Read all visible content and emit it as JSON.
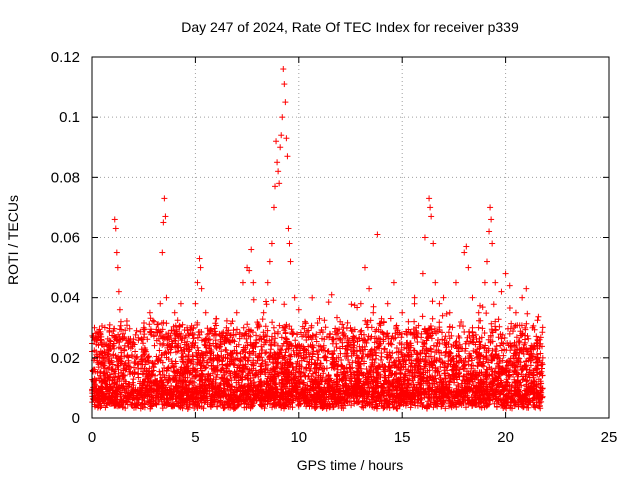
{
  "chart_data": {
    "type": "scatter",
    "title": "Day 247 of 2024, Rate Of TEC Index for receiver p339",
    "xlabel": "GPS time / hours",
    "ylabel": "ROTI / TECUs",
    "xlim": [
      0,
      25
    ],
    "ylim": [
      0,
      0.12
    ],
    "x_ticks": [
      0,
      5,
      10,
      15,
      20,
      25
    ],
    "x_tick_labels": [
      "0",
      "5",
      "10",
      "15",
      "20",
      "25"
    ],
    "y_ticks": [
      0,
      0.02,
      0.04,
      0.06,
      0.08,
      0.1,
      0.12
    ],
    "y_tick_labels": [
      "0",
      "0.02",
      "0.04",
      "0.06",
      "0.08",
      "0.1",
      "0.12"
    ],
    "grid": true,
    "marker": "plus",
    "color": "#ff0000",
    "x_range_of_data": [
      0,
      21.8
    ],
    "series": [
      {
        "points": [
          [
            0.1,
            0.012
          ],
          [
            0.2,
            0.022
          ],
          [
            0.3,
            0.027
          ],
          [
            0.5,
            0.018
          ],
          [
            0.8,
            0.024
          ],
          [
            1.1,
            0.066
          ],
          [
            1.15,
            0.063
          ],
          [
            1.2,
            0.055
          ],
          [
            1.25,
            0.05
          ],
          [
            1.3,
            0.042
          ],
          [
            1.35,
            0.036
          ],
          [
            1.4,
            0.032
          ],
          [
            1.5,
            0.028
          ],
          [
            2.0,
            0.025
          ],
          [
            2.5,
            0.03
          ],
          [
            2.8,
            0.035
          ],
          [
            3.0,
            0.032
          ],
          [
            3.3,
            0.038
          ],
          [
            3.4,
            0.055
          ],
          [
            3.45,
            0.065
          ],
          [
            3.5,
            0.073
          ],
          [
            3.55,
            0.067
          ],
          [
            3.6,
            0.04
          ],
          [
            4.0,
            0.035
          ],
          [
            4.3,
            0.038
          ],
          [
            4.6,
            0.03
          ],
          [
            5.0,
            0.038
          ],
          [
            5.1,
            0.045
          ],
          [
            5.2,
            0.053
          ],
          [
            5.25,
            0.05
          ],
          [
            5.3,
            0.043
          ],
          [
            5.5,
            0.035
          ],
          [
            6.0,
            0.033
          ],
          [
            6.5,
            0.03
          ],
          [
            7.0,
            0.035
          ],
          [
            7.3,
            0.045
          ],
          [
            7.5,
            0.05
          ],
          [
            7.6,
            0.049
          ],
          [
            7.7,
            0.056
          ],
          [
            7.8,
            0.045
          ],
          [
            8.0,
            0.03
          ],
          [
            8.3,
            0.035
          ],
          [
            8.5,
            0.045
          ],
          [
            8.6,
            0.052
          ],
          [
            8.7,
            0.058
          ],
          [
            8.8,
            0.07
          ],
          [
            8.85,
            0.077
          ],
          [
            8.9,
            0.092
          ],
          [
            8.95,
            0.085
          ],
          [
            9.0,
            0.082
          ],
          [
            9.05,
            0.078
          ],
          [
            9.1,
            0.09
          ],
          [
            9.15,
            0.094
          ],
          [
            9.2,
            0.1
          ],
          [
            9.25,
            0.116
          ],
          [
            9.3,
            0.111
          ],
          [
            9.35,
            0.105
          ],
          [
            9.4,
            0.093
          ],
          [
            9.45,
            0.087
          ],
          [
            9.5,
            0.063
          ],
          [
            9.55,
            0.058
          ],
          [
            9.6,
            0.052
          ],
          [
            9.8,
            0.04
          ],
          [
            10.0,
            0.036
          ],
          [
            10.3,
            0.032
          ],
          [
            10.6,
            0.03
          ],
          [
            11.0,
            0.033
          ],
          [
            11.5,
            0.028
          ],
          [
            12.0,
            0.032
          ],
          [
            12.5,
            0.03
          ],
          [
            13.0,
            0.038
          ],
          [
            13.2,
            0.05
          ],
          [
            13.4,
            0.043
          ],
          [
            13.6,
            0.035
          ],
          [
            13.8,
            0.061
          ],
          [
            14.0,
            0.033
          ],
          [
            14.3,
            0.038
          ],
          [
            14.6,
            0.045
          ],
          [
            15.0,
            0.035
          ],
          [
            15.3,
            0.032
          ],
          [
            15.6,
            0.04
          ],
          [
            16.0,
            0.048
          ],
          [
            16.1,
            0.06
          ],
          [
            16.3,
            0.073
          ],
          [
            16.35,
            0.07
          ],
          [
            16.4,
            0.067
          ],
          [
            16.5,
            0.058
          ],
          [
            16.6,
            0.045
          ],
          [
            16.8,
            0.038
          ],
          [
            17.0,
            0.04
          ],
          [
            17.3,
            0.035
          ],
          [
            17.6,
            0.045
          ],
          [
            18.0,
            0.055
          ],
          [
            18.1,
            0.057
          ],
          [
            18.2,
            0.05
          ],
          [
            18.4,
            0.04
          ],
          [
            18.7,
            0.035
          ],
          [
            19.0,
            0.045
          ],
          [
            19.1,
            0.052
          ],
          [
            19.2,
            0.062
          ],
          [
            19.25,
            0.07
          ],
          [
            19.3,
            0.066
          ],
          [
            19.35,
            0.058
          ],
          [
            19.5,
            0.045
          ],
          [
            19.8,
            0.042
          ],
          [
            20.0,
            0.048
          ],
          [
            20.2,
            0.044
          ],
          [
            20.5,
            0.035
          ],
          [
            20.8,
            0.04
          ],
          [
            21.0,
            0.043
          ],
          [
            21.3,
            0.03
          ],
          [
            21.5,
            0.025
          ],
          [
            21.8,
            0.02
          ]
        ]
      }
    ]
  }
}
